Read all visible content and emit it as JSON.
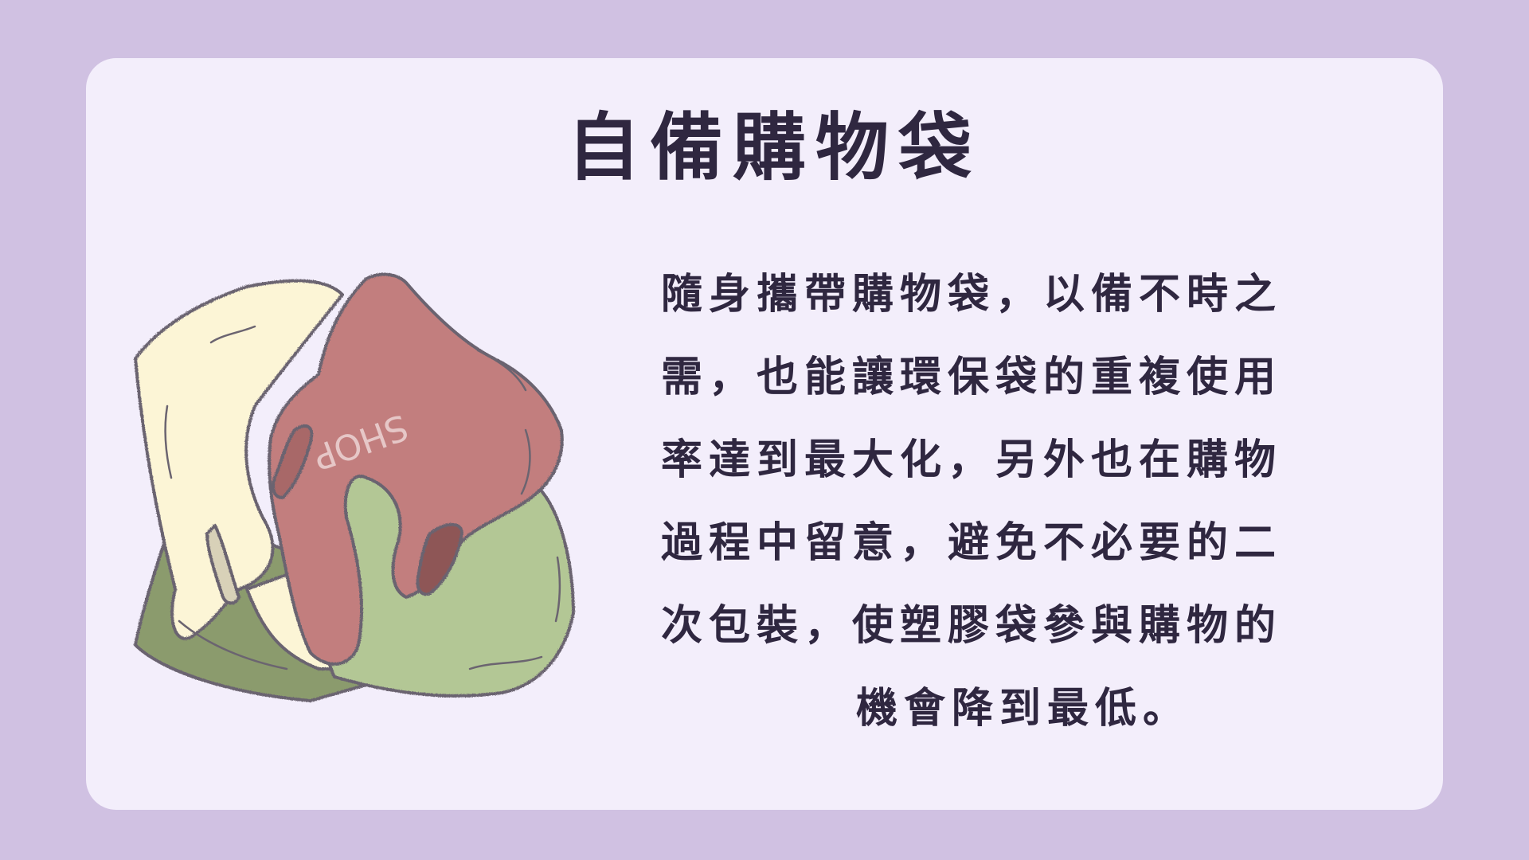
{
  "title": "自備購物袋",
  "body_lines": [
    "隨身攜帶購物袋，以備不時之",
    "需，也能讓環保袋的重複使用",
    "率達到最大化，另外也在購物",
    "過程中留意，避免不必要的二",
    "次包裝，使塑膠袋參與購物的",
    "機會降到最低。"
  ],
  "illustration": {
    "name": "shopping-bags-icon",
    "bag_text": "SHOP"
  },
  "colors": {
    "background": "#d0c1e2",
    "card": "#f3eefb",
    "text": "#2f2740",
    "bag_cream": "#fcf5d6",
    "bag_red": "#c27e7e",
    "bag_green": "#b3c795",
    "bag_green_dark": "#8b9b6d"
  }
}
